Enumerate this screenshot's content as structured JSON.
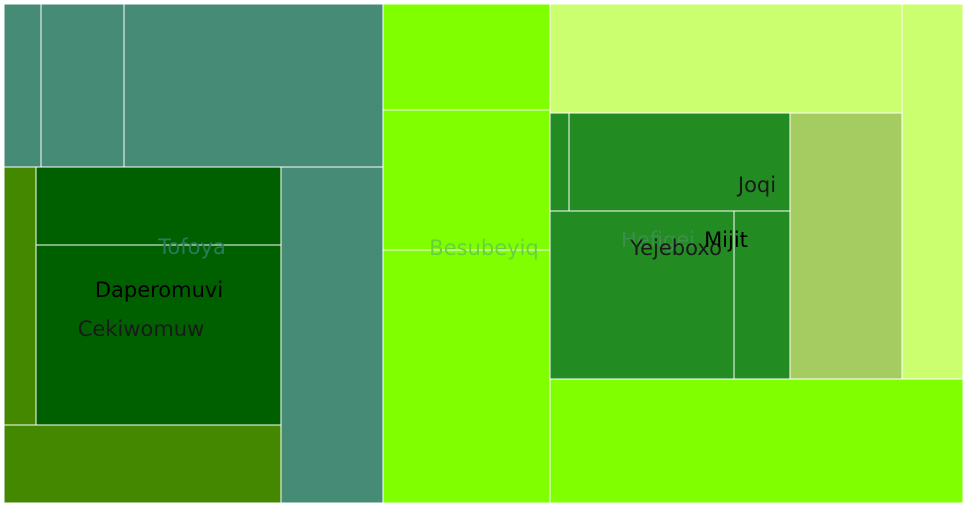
{
  "chart_data": {
    "type": "treemap",
    "title": "",
    "colors": {
      "teal": "#468b75",
      "olive": "#448800",
      "darkgreen": "#006000",
      "lime": "#7fff00",
      "palelime": "#ccff70",
      "forest": "#228b22",
      "sage": "#a5cc60",
      "border": "#ffffff"
    },
    "labels": [
      {
        "text": "Tofoya",
        "color": "#2a7a5f"
      },
      {
        "text": "Daperomuvi",
        "color": "#000000"
      },
      {
        "text": "Cekiwomuw",
        "color": "#1a1a1a"
      },
      {
        "text": "Besubeyiq",
        "color": "#66d23e"
      },
      {
        "text": "Hefigei",
        "color": "#3c8f4a"
      },
      {
        "text": "Yejeboxo",
        "color": "#1a1a1a"
      },
      {
        "text": "Joqi",
        "color": "#1a1a1a"
      },
      {
        "text": "Mijit",
        "color": "#000000"
      }
    ]
  }
}
